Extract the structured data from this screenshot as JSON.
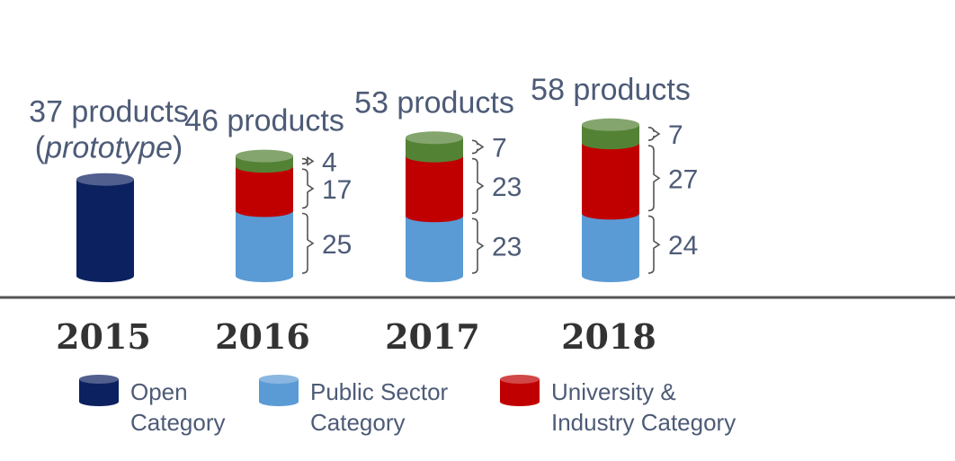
{
  "chart_data": {
    "type": "bar",
    "stacked": true,
    "categories": [
      "2015",
      "2016",
      "2017",
      "2018"
    ],
    "series": [
      {
        "name": "Open Category",
        "key": "open",
        "color": "#0c2160",
        "values": [
          37,
          0,
          0,
          0
        ]
      },
      {
        "name": "Public Sector Category",
        "key": "public",
        "color": "#5b9bd5",
        "values": [
          0,
          25,
          23,
          24
        ]
      },
      {
        "name": "University & Industry Category",
        "key": "univ",
        "color": "#c00000",
        "values": [
          0,
          17,
          23,
          27
        ]
      },
      {
        "key": "green",
        "color": "#548235",
        "values": [
          0,
          4,
          7,
          7
        ]
      }
    ],
    "totals": [
      {
        "text": "37 products",
        "subtitle": "prototype"
      },
      {
        "text": "46 products"
      },
      {
        "text": "53 products"
      },
      {
        "text": "58 products"
      }
    ],
    "legend": [
      {
        "key": "open",
        "line1": "Open",
        "line2": "Category"
      },
      {
        "key": "public",
        "line1": "Public Sector",
        "line2": "Category"
      },
      {
        "key": "univ",
        "line1": "University &",
        "line2": "Industry Category"
      }
    ],
    "legend_position": "bottom",
    "grid": false,
    "title": "",
    "xlabel": "",
    "ylabel": ""
  }
}
